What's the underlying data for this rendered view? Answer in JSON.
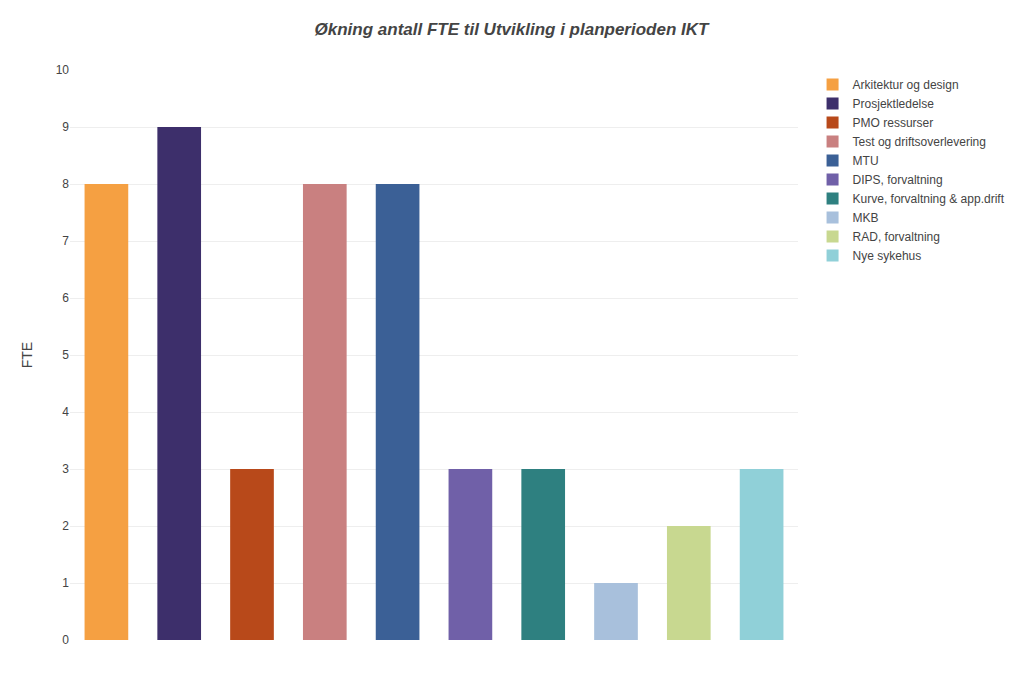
{
  "chart_data": {
    "type": "bar",
    "title": "Økning antall FTE til Utvikling i planperioden IKT",
    "ylabel": "FTE",
    "categories": [
      "Arkitektur og design",
      "Prosjektledelse",
      "PMO ressurser",
      "Test og driftsoverlevering",
      "MTU",
      "DIPS, forvaltning",
      "Kurve, forvaltning & app.drift",
      "MKB",
      "RAD, forvaltning",
      "Nye sykehus"
    ],
    "values": [
      8,
      9,
      3,
      8,
      8,
      3,
      3,
      1,
      2,
      3
    ],
    "colors": [
      "#F5A042",
      "#3D2F6B",
      "#B8491A",
      "#C98080",
      "#3B6096",
      "#7060A8",
      "#2E8080",
      "#A8C0DC",
      "#C8D890",
      "#90D0D8"
    ],
    "ylim": [
      0,
      10
    ],
    "yticks": [
      0,
      1,
      2,
      3,
      4,
      5,
      6,
      7,
      8,
      9,
      10
    ],
    "grid": true,
    "legend": "right",
    "tick_labels": "y"
  }
}
